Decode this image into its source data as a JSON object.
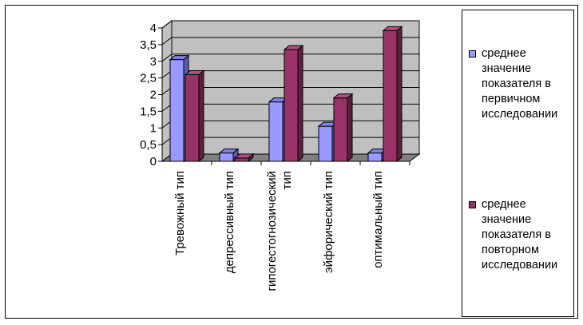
{
  "chart_data": {
    "type": "bar",
    "title": "",
    "xlabel": "",
    "ylabel": "",
    "ylim": [
      0,
      4
    ],
    "yticks": [
      "0",
      "0,5",
      "1",
      "1,5",
      "2",
      "2,5",
      "3",
      "3,5",
      "4"
    ],
    "categories": [
      [
        "Тревожный тип"
      ],
      [
        "депрессивный тип"
      ],
      [
        "гипогестогнозический",
        "тип"
      ],
      [
        "эйфорический тип"
      ],
      [
        "оптимальный тип"
      ]
    ],
    "series": [
      {
        "name": "среднее значение показателя в первичном исследовании",
        "values": [
          3.05,
          0.25,
          1.78,
          1.05,
          0.25
        ]
      },
      {
        "name": "среднее значение показателя в повторном исследовании",
        "values": [
          2.6,
          0.1,
          3.35,
          1.9,
          3.92
        ]
      }
    ],
    "legend_position": "right",
    "grid": true
  },
  "legend": {
    "items": [
      {
        "lines": [
          "среднее",
          "значение",
          "показателя в",
          "первичном",
          "исследовании"
        ],
        "color": "#9999ff"
      },
      {
        "lines": [
          "среднее",
          "значение",
          "показателя в",
          "повторном",
          "исследовании"
        ],
        "color": "#993366"
      }
    ]
  },
  "colors": {
    "series1_front": "#9999ff",
    "series1_top": "#8080e6",
    "series1_side": "#5c5cb8",
    "series2_front": "#993366",
    "series2_top": "#b34d7d",
    "series2_side": "#5e1f3f",
    "wall": "#c0c0c0",
    "floor": "#808080"
  }
}
